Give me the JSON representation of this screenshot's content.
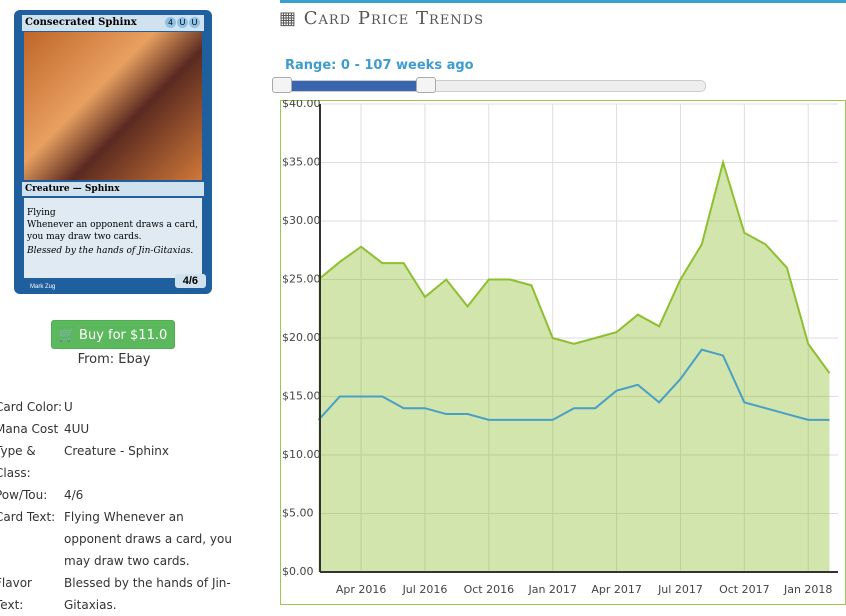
{
  "card": {
    "name": "Consecrated Sphinx",
    "mana_symbols": [
      "4",
      "U",
      "U"
    ],
    "type_line": "Creature — Sphinx",
    "rules": [
      "Flying",
      "Whenever an opponent draws a card, you may draw two cards."
    ],
    "flavor": "Blessed by the hands of Jin-Gitaxias.",
    "pt": "4/6",
    "artist": "Mark Zug"
  },
  "buy_button": "Buy for $11.0",
  "source": "From: Ebay",
  "details": [
    [
      "Card Color:",
      "U"
    ],
    [
      "Mana Cost",
      "4UU"
    ],
    [
      "Type & Class:",
      "Creature - Sphinx"
    ],
    [
      "Pow/Tou:",
      "4/6"
    ],
    [
      "Card Text:",
      "Flying Whenever an opponent draws a card, you may draw two cards."
    ],
    [
      "Flavor Text:",
      "Blessed by the hands of Jin-Gitaxias."
    ]
  ],
  "chart_header": "Card Price Trends",
  "range_label": "Range: 0 - 107 weeks ago",
  "chart_data": {
    "type": "line",
    "x": [
      "2016-02",
      "2016-03",
      "2016-04",
      "2016-05",
      "2016-06",
      "2016-07",
      "2016-08",
      "2016-09",
      "2016-10",
      "2016-11",
      "2016-12",
      "2017-01",
      "2017-02",
      "2017-03",
      "2017-04",
      "2017-05",
      "2017-06",
      "2017-07",
      "2017-08",
      "2017-09",
      "2017-10",
      "2017-11",
      "2017-12",
      "2018-01",
      "2018-02"
    ],
    "series": [
      {
        "color": "#8dbf2f",
        "area": true,
        "values": [
          25,
          26.5,
          27.8,
          26.4,
          26.4,
          23.5,
          25,
          22.7,
          25,
          25,
          24.5,
          20,
          19.5,
          20,
          20.5,
          22,
          21,
          25,
          28,
          35,
          29,
          28,
          26,
          19.5,
          17
        ]
      },
      {
        "color": "#4a9fc7",
        "values": [
          13,
          15,
          15,
          15,
          14,
          14,
          13.5,
          13.5,
          13,
          13,
          13,
          13,
          14,
          14,
          15.5,
          16,
          14.5,
          16.5,
          19,
          18.5,
          14.5,
          14,
          13.5,
          13,
          13
        ]
      }
    ],
    "ylim": [
      0,
      40
    ],
    "yticks": [
      {
        "value": 0,
        "label": "$0.00"
      },
      {
        "value": 5,
        "label": "$5.00"
      },
      {
        "value": 10,
        "label": "$10.00"
      },
      {
        "value": 15,
        "label": "$15.00"
      },
      {
        "value": 20,
        "label": "$20.00"
      },
      {
        "value": 25,
        "label": "$25.00"
      },
      {
        "value": 30,
        "label": "$30.00"
      },
      {
        "value": 35,
        "label": "$35.00"
      },
      {
        "value": 40,
        "label": "$40.00"
      }
    ],
    "xticks": [
      {
        "value": "2016-04",
        "label": "Apr 2016"
      },
      {
        "value": "2016-07",
        "label": "Jul 2016"
      },
      {
        "value": "2016-10",
        "label": "Oct 2016"
      },
      {
        "value": "2017-01",
        "label": "Jan 2017"
      },
      {
        "value": "2017-04",
        "label": "Apr 2017"
      },
      {
        "value": "2017-07",
        "label": "Jul 2017"
      },
      {
        "value": "2017-10",
        "label": "Oct 2017"
      },
      {
        "value": "2018-01",
        "label": "Jan 2018"
      }
    ],
    "grid": true
  }
}
